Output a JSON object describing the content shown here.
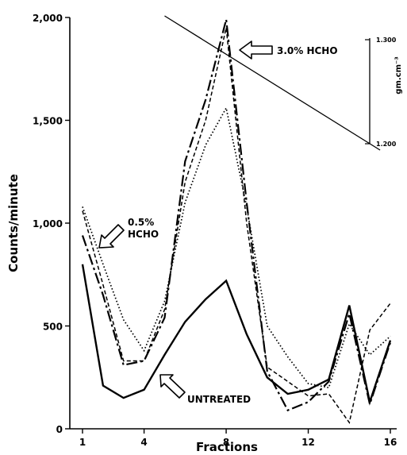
{
  "chart_data": {
    "type": "line",
    "title": "",
    "xlabel": "Fractions",
    "ylabel": "Counts/minute",
    "xlim": [
      0,
      16
    ],
    "ylim": [
      0,
      2000
    ],
    "x_ticks": [
      1,
      4,
      8,
      12,
      16
    ],
    "x_tick_labels": [
      "1",
      "4",
      "8",
      "12",
      "16"
    ],
    "y_ticks": [
      0,
      500,
      1000,
      1500,
      2000
    ],
    "y_tick_labels": [
      "0",
      "500",
      "1,000",
      "1,500",
      "2,000"
    ],
    "grid": false,
    "legend": "none",
    "series": [
      {
        "style": "solid",
        "x": [
          1,
          2,
          3,
          4,
          5,
          6,
          7,
          8,
          9,
          10,
          11,
          12,
          13,
          14,
          15,
          16
        ],
        "y": [
          800,
          210,
          150,
          190,
          360,
          520,
          630,
          720,
          460,
          250,
          170,
          190,
          240,
          600,
          130,
          430
        ]
      },
      {
        "style": "dash-long",
        "x": [
          1,
          2,
          3,
          4,
          5,
          6,
          7,
          8,
          9,
          10,
          11,
          12,
          13,
          14,
          15,
          16
        ],
        "y": [
          940,
          650,
          310,
          330,
          540,
          1300,
          1600,
          1990,
          1100,
          280,
          90,
          130,
          230,
          560,
          120,
          420
        ]
      },
      {
        "style": "dash-short",
        "x": [
          1,
          2,
          3,
          4,
          5,
          6,
          7,
          8,
          9,
          10,
          11,
          12,
          13,
          14,
          15,
          16
        ],
        "y": [
          1060,
          700,
          330,
          330,
          580,
          1200,
          1500,
          1950,
          1000,
          300,
          230,
          160,
          170,
          30,
          480,
          610
        ]
      },
      {
        "style": "dotted",
        "x": [
          1,
          2,
          3,
          4,
          5,
          6,
          7,
          8,
          9,
          10,
          11,
          12,
          13,
          14,
          15,
          16
        ],
        "y": [
          1080,
          800,
          530,
          380,
          620,
          1100,
          1380,
          1560,
          1080,
          500,
          350,
          220,
          200,
          510,
          360,
          450
        ]
      }
    ],
    "density_gradient": {
      "axis_label": "gm.cm⁻³",
      "ticks": [
        "1.300",
        "1.200"
      ],
      "from": {
        "fraction": 5,
        "density": 1.3
      },
      "to": {
        "fraction": 15.5,
        "density": 1.2
      }
    },
    "annotations": [
      {
        "text": "3.0% HCHO"
      },
      {
        "text_lines": [
          "0.5%",
          "HCHO"
        ]
      },
      {
        "text": "UNTREATED"
      }
    ]
  }
}
